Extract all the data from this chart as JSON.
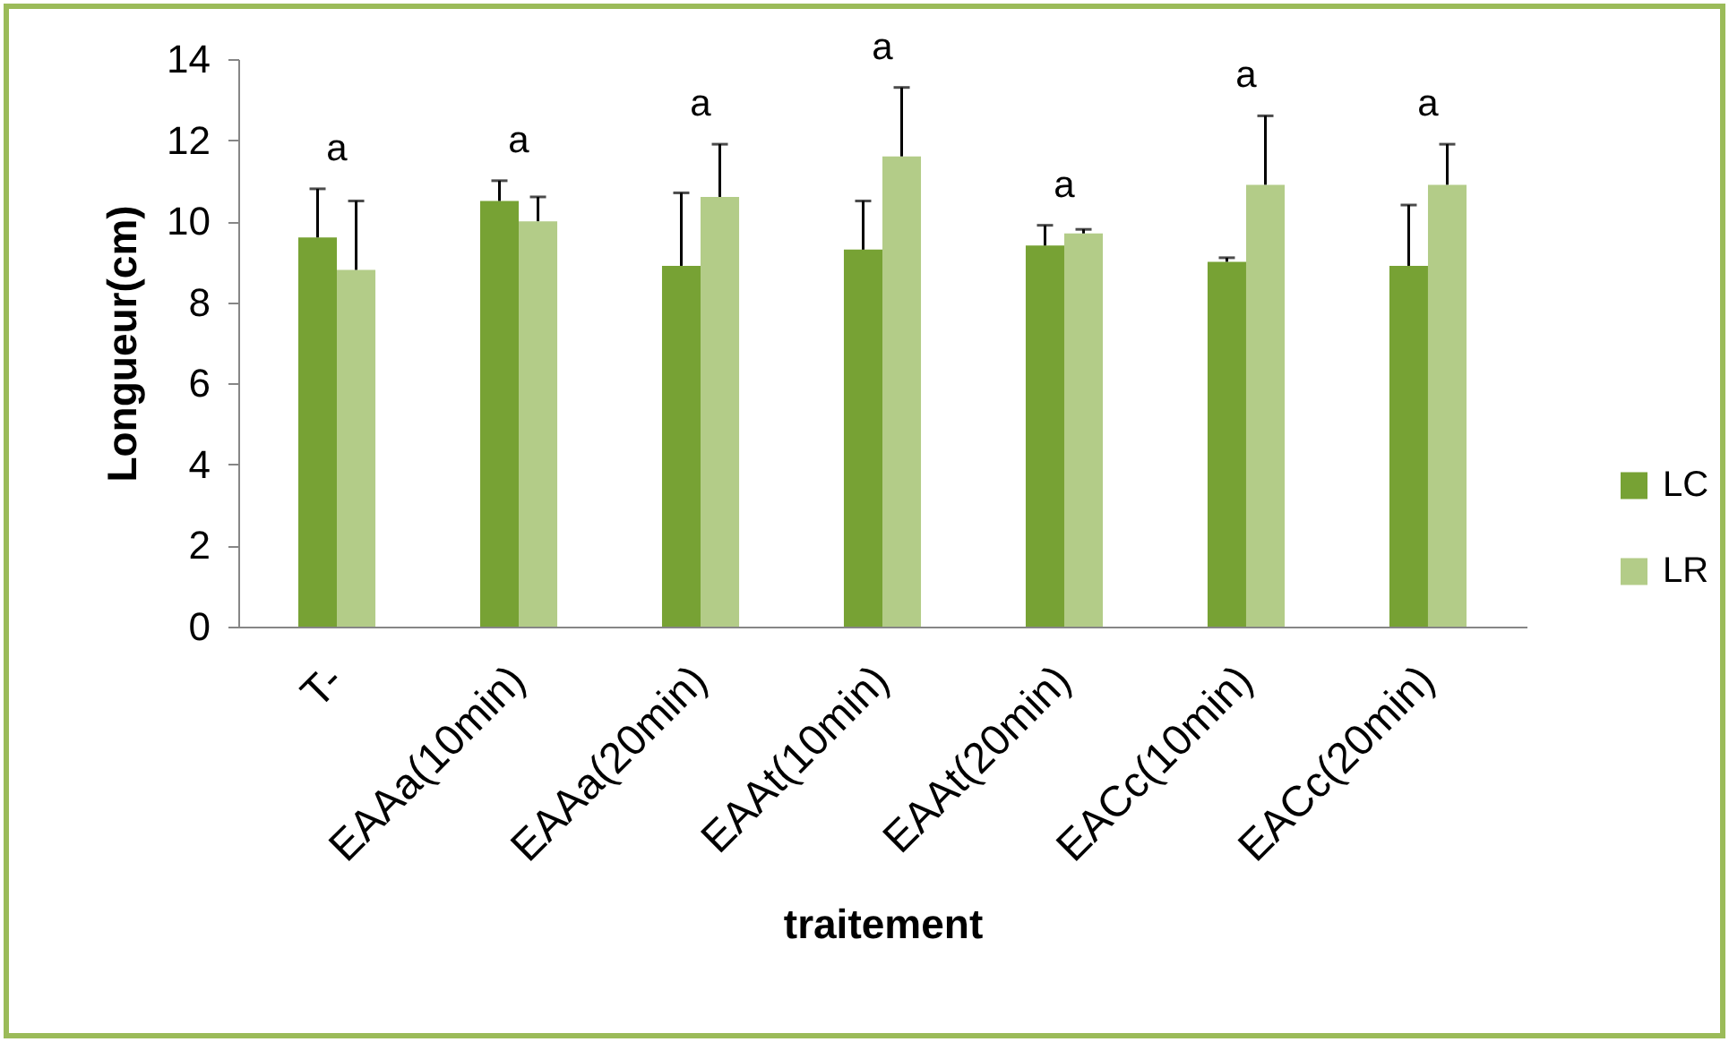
{
  "chart_data": {
    "type": "bar",
    "xlabel": "traitement",
    "ylabel": "Longueur(cm)",
    "categories": [
      "T-",
      "EAAa(10min)",
      "EAAa(20min)",
      "EAAt(10min)",
      "EAAt(20min)",
      "EACc(10min)",
      "EACc(20min)"
    ],
    "series": [
      {
        "name": "LC",
        "color": "#77a234",
        "values": [
          9.6,
          10.5,
          8.9,
          9.3,
          9.4,
          9.0,
          8.9
        ],
        "errors": [
          [
            9.6,
            10.8
          ],
          [
            10.5,
            11.0
          ],
          [
            8.9,
            10.7
          ],
          [
            9.3,
            10.5
          ],
          [
            9.4,
            9.9
          ],
          [
            9.0,
            9.1
          ],
          [
            8.9,
            10.4
          ]
        ]
      },
      {
        "name": "LR",
        "color": "#b3cc88",
        "values": [
          8.8,
          10.0,
          10.6,
          11.6,
          9.7,
          10.9,
          10.9
        ],
        "errors": [
          [
            8.8,
            10.5
          ],
          [
            10.0,
            10.6
          ],
          [
            10.6,
            11.9
          ],
          [
            11.6,
            13.3
          ],
          [
            9.7,
            9.8
          ],
          [
            10.9,
            12.6
          ],
          [
            10.9,
            11.9
          ]
        ]
      }
    ],
    "ylim": [
      0,
      14
    ],
    "yticks": [
      0,
      2,
      4,
      6,
      8,
      10,
      12,
      14
    ],
    "legend": "right",
    "annotations": [
      "a",
      "a",
      "a",
      "a",
      "a",
      "a",
      "a"
    ]
  }
}
